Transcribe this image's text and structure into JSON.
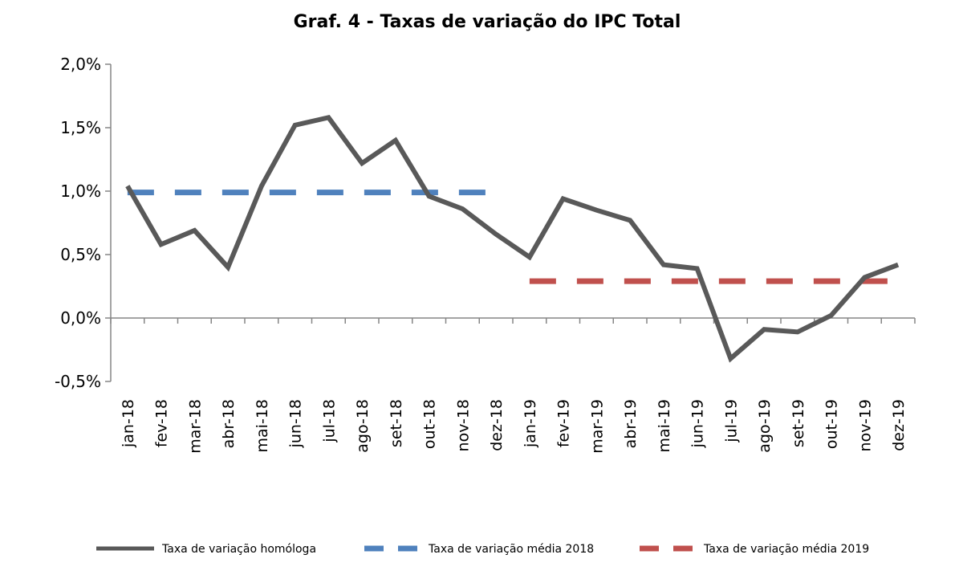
{
  "chart_data": {
    "type": "line",
    "title": "Graf. 4 - Taxas de variação do IPC Total",
    "xlabel": "",
    "ylabel": "",
    "categories": [
      "jan-18",
      "fev-18",
      "mar-18",
      "abr-18",
      "mai-18",
      "jun-18",
      "jul-18",
      "ago-18",
      "set-18",
      "out-18",
      "nov-18",
      "dez-18",
      "jan-19",
      "fev-19",
      "mar-19",
      "abr-19",
      "mai-19",
      "jun-19",
      "jul-19",
      "ago-19",
      "set-19",
      "out-19",
      "nov-19",
      "dez-19"
    ],
    "ylim": [
      -0.5,
      2.0
    ],
    "yticks": [
      -0.5,
      0.0,
      0.5,
      1.0,
      1.5,
      2.0
    ],
    "ytick_labels": [
      "-0,5%",
      "0,0%",
      "0,5%",
      "1,0%",
      "1,5%",
      "2,0%"
    ],
    "grid": false,
    "legend_position": "bottom",
    "series": [
      {
        "name": "Taxa de variação homóloga",
        "style": "solid",
        "color": "#595959",
        "values": [
          1.04,
          0.58,
          0.69,
          0.4,
          1.04,
          1.52,
          1.58,
          1.22,
          1.4,
          0.96,
          0.86,
          0.66,
          0.48,
          0.94,
          0.85,
          0.77,
          0.42,
          0.39,
          -0.32,
          -0.09,
          -0.11,
          0.02,
          0.32,
          0.42
        ]
      },
      {
        "name": "Taxa de variação média 2018",
        "style": "dashed",
        "color": "#4F81BD",
        "values": [
          0.99,
          0.99,
          0.99,
          0.99,
          0.99,
          0.99,
          0.99,
          0.99,
          0.99,
          0.99,
          0.99,
          0.99,
          null,
          null,
          null,
          null,
          null,
          null,
          null,
          null,
          null,
          null,
          null,
          null
        ]
      },
      {
        "name": "Taxa de variação média 2019",
        "style": "dashed",
        "color": "#C0504D",
        "values": [
          null,
          null,
          null,
          null,
          null,
          null,
          null,
          null,
          null,
          null,
          null,
          null,
          0.29,
          0.29,
          0.29,
          0.29,
          0.29,
          0.29,
          0.29,
          0.29,
          0.29,
          0.29,
          0.29,
          0.29
        ]
      }
    ]
  }
}
